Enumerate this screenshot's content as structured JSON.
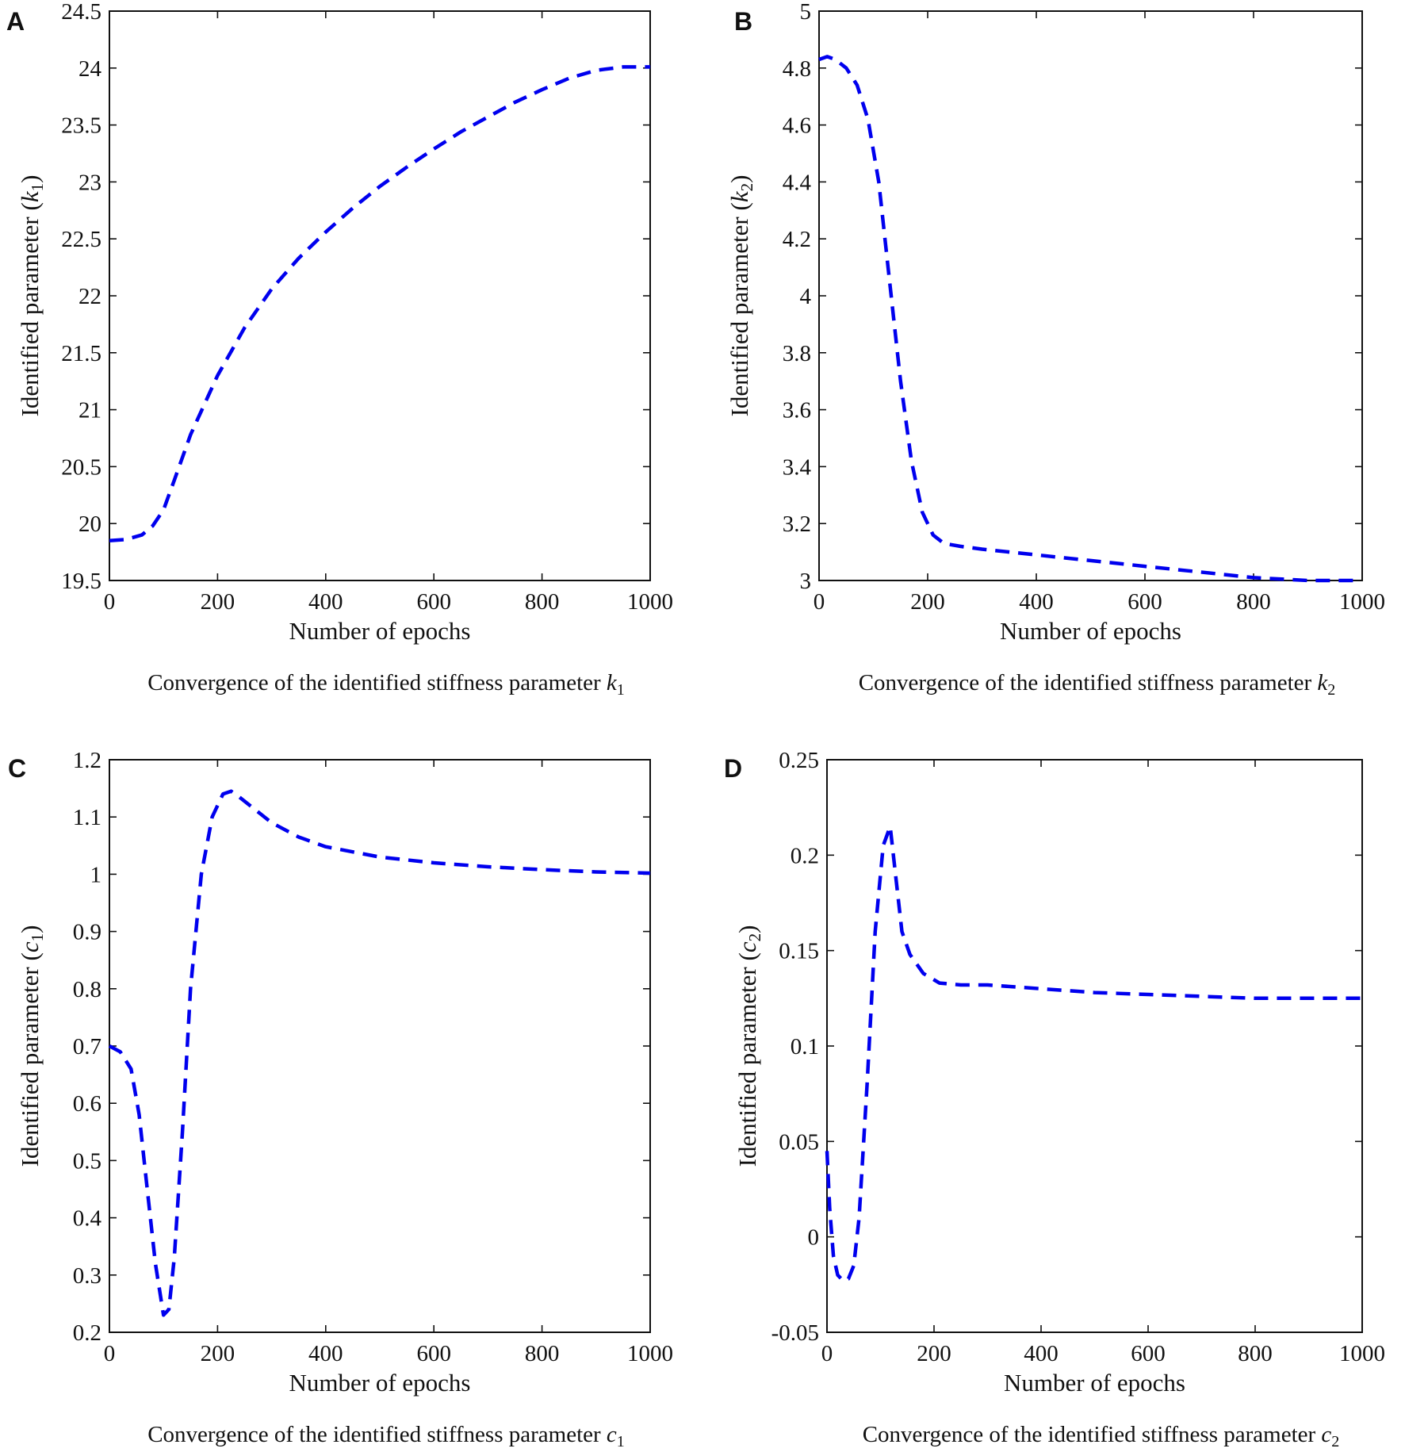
{
  "chart_data": [
    {
      "type": "line",
      "panel_label": "A",
      "xlabel": "Number of epochs",
      "ylabel_prefix": "Identified parameter ",
      "ylabel_symbol": "k",
      "ylabel_subscript": "1",
      "caption_prefix": "Convergence of the identified stiffness parameter ",
      "caption_symbol": "k",
      "caption_subscript": "1",
      "xlim": [
        0,
        1000
      ],
      "ylim": [
        19.5,
        24.5
      ],
      "xticks": [
        "0",
        "200",
        "400",
        "600",
        "800",
        "1000"
      ],
      "yticks": [
        "19.5",
        "20",
        "20.5",
        "21",
        "21.5",
        "22",
        "22.5",
        "23",
        "23.5",
        "24",
        "24.5"
      ],
      "grid": false,
      "line_style": "dashed",
      "color": "#0000ee",
      "x": [
        0,
        30,
        60,
        80,
        100,
        120,
        150,
        200,
        250,
        300,
        350,
        400,
        450,
        500,
        550,
        600,
        650,
        700,
        750,
        800,
        850,
        900,
        950,
        1000
      ],
      "y": [
        19.85,
        19.86,
        19.9,
        19.98,
        20.12,
        20.38,
        20.78,
        21.3,
        21.72,
        22.06,
        22.33,
        22.56,
        22.77,
        22.96,
        23.13,
        23.29,
        23.44,
        23.57,
        23.7,
        23.81,
        23.91,
        23.98,
        24.01,
        24.01
      ]
    },
    {
      "type": "line",
      "panel_label": "B",
      "xlabel": "Number of epochs",
      "ylabel_prefix": "Identified parameter ",
      "ylabel_symbol": "k",
      "ylabel_subscript": "2",
      "caption_prefix": "Convergence of the identified stiffness parameter ",
      "caption_symbol": "k",
      "caption_subscript": "2",
      "xlim": [
        0,
        1000
      ],
      "ylim": [
        3,
        5
      ],
      "xticks": [
        "0",
        "200",
        "400",
        "600",
        "800",
        "1000"
      ],
      "yticks": [
        "3",
        "3.2",
        "3.4",
        "3.6",
        "3.8",
        "4",
        "4.2",
        "4.4",
        "4.6",
        "4.8",
        "5"
      ],
      "grid": false,
      "line_style": "dashed",
      "color": "#0000ee",
      "x": [
        0,
        15,
        30,
        50,
        70,
        90,
        110,
        130,
        150,
        170,
        190,
        210,
        230,
        260,
        300,
        400,
        500,
        600,
        700,
        800,
        900,
        985
      ],
      "y": [
        4.83,
        4.84,
        4.83,
        4.8,
        4.74,
        4.62,
        4.4,
        4.05,
        3.7,
        3.42,
        3.24,
        3.16,
        3.13,
        3.12,
        3.11,
        3.09,
        3.07,
        3.05,
        3.03,
        3.01,
        3.0,
        3.0
      ]
    },
    {
      "type": "line",
      "panel_label": "C",
      "xlabel": "Number of epochs",
      "ylabel_prefix": "Identified parameter ",
      "ylabel_symbol": "c",
      "ylabel_subscript": "1",
      "caption_prefix": "Convergence of the identified stiffness parameter ",
      "caption_symbol": "c",
      "caption_subscript": "1",
      "xlim": [
        0,
        1000
      ],
      "ylim": [
        0.2,
        1.2
      ],
      "xticks": [
        "0",
        "200",
        "400",
        "600",
        "800",
        "1000"
      ],
      "yticks": [
        "0.2",
        "0.3",
        "0.4",
        "0.5",
        "0.6",
        "0.7",
        "0.8",
        "0.9",
        "1",
        "1.1",
        "1.2"
      ],
      "grid": false,
      "line_style": "dashed",
      "color": "#0000ee",
      "x": [
        0,
        20,
        40,
        55,
        70,
        85,
        100,
        110,
        120,
        135,
        150,
        170,
        190,
        210,
        225,
        240,
        260,
        300,
        350,
        400,
        500,
        600,
        700,
        800,
        900,
        1000
      ],
      "y": [
        0.7,
        0.69,
        0.66,
        0.58,
        0.45,
        0.32,
        0.23,
        0.24,
        0.33,
        0.55,
        0.8,
        1.0,
        1.1,
        1.14,
        1.145,
        1.135,
        1.12,
        1.09,
        1.065,
        1.048,
        1.03,
        1.02,
        1.013,
        1.008,
        1.004,
        1.002
      ]
    },
    {
      "type": "line",
      "panel_label": "D",
      "xlabel": "Number of epochs",
      "ylabel_prefix": "Identified parameter ",
      "ylabel_symbol": "c",
      "ylabel_subscript": "2",
      "caption_prefix": "Convergence of the identified stiffness parameter ",
      "caption_symbol": "c",
      "caption_subscript": "2",
      "xlim": [
        0,
        1000
      ],
      "ylim": [
        -0.05,
        0.25
      ],
      "xticks": [
        "0",
        "200",
        "400",
        "600",
        "800",
        "1000"
      ],
      "yticks": [
        "-0.05",
        "0",
        "0.05",
        "0.1",
        "0.15",
        "0.2",
        "0.25"
      ],
      "grid": false,
      "line_style": "dashed",
      "color": "#0000ee",
      "x": [
        0,
        5,
        12,
        20,
        30,
        40,
        50,
        60,
        75,
        90,
        105,
        118,
        128,
        140,
        155,
        180,
        210,
        250,
        300,
        400,
        500,
        600,
        700,
        800,
        900,
        1000
      ],
      "y": [
        0.045,
        0.015,
        -0.01,
        -0.02,
        -0.023,
        -0.022,
        -0.015,
        0.01,
        0.08,
        0.16,
        0.205,
        0.215,
        0.19,
        0.16,
        0.148,
        0.138,
        0.133,
        0.132,
        0.132,
        0.13,
        0.128,
        0.127,
        0.126,
        0.125,
        0.125,
        0.125
      ]
    }
  ]
}
